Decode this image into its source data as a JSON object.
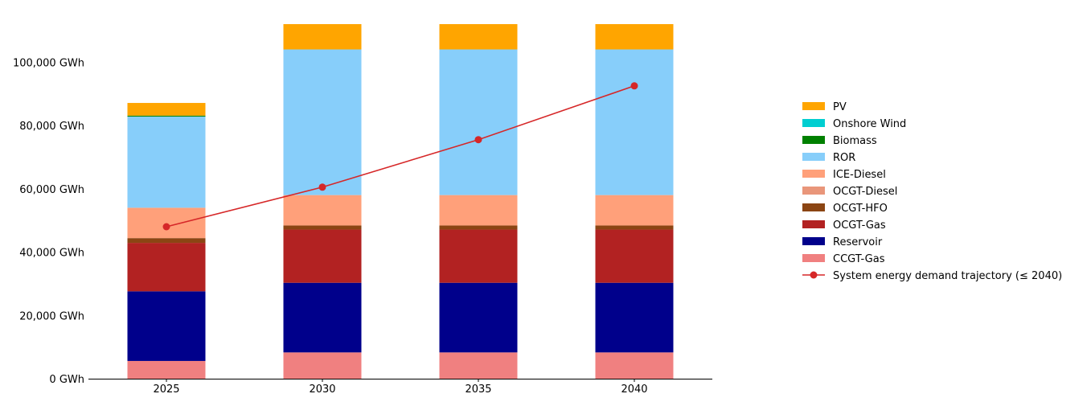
{
  "chart_data": {
    "type": "bar",
    "stacked": true,
    "categories": [
      "2025",
      "2030",
      "2035",
      "2040"
    ],
    "ylim": [
      0,
      112000
    ],
    "yticks": [
      0,
      20000,
      40000,
      60000,
      80000,
      100000
    ],
    "ytick_labels": [
      "0 GWh",
      "20,000 GWh",
      "40,000 GWh",
      "60,000 GWh",
      "80,000 GWh",
      "100,000 GWh"
    ],
    "grid": false,
    "legend_position": "right",
    "series": [
      {
        "name": "CCGT-Gas",
        "color": "#f08080",
        "values": [
          5600,
          8300,
          8300,
          8300
        ]
      },
      {
        "name": "Reservoir",
        "color": "#00008b",
        "values": [
          22000,
          22000,
          22000,
          22000
        ]
      },
      {
        "name": "OCGT-Gas",
        "color": "#b22222",
        "values": [
          15300,
          16800,
          16800,
          16800
        ]
      },
      {
        "name": "OCGT-HFO",
        "color": "#8b4513",
        "values": [
          1500,
          1300,
          1300,
          1300
        ]
      },
      {
        "name": "OCGT-Diesel",
        "color": "#e9967a",
        "values": [
          0,
          0,
          0,
          0
        ]
      },
      {
        "name": "ICE-Diesel",
        "color": "#ffa07a",
        "values": [
          9600,
          9600,
          9600,
          9600
        ]
      },
      {
        "name": "ROR",
        "color": "#87cefa",
        "values": [
          28800,
          46000,
          46000,
          46000
        ]
      },
      {
        "name": "Biomass",
        "color": "#008000",
        "values": [
          300,
          0,
          0,
          0
        ]
      },
      {
        "name": "Onshore Wind",
        "color": "#00ced1",
        "values": [
          0,
          0,
          0,
          0
        ]
      },
      {
        "name": "PV",
        "color": "#ffa500",
        "values": [
          4000,
          8000,
          8000,
          8000
        ]
      }
    ],
    "line": {
      "name": "System energy demand trajectory (≤ 2040)",
      "color": "#d62728",
      "values": [
        48000,
        60500,
        75500,
        92500
      ]
    },
    "legend_order": [
      "PV",
      "Onshore Wind",
      "Biomass",
      "ROR",
      "ICE-Diesel",
      "OCGT-Diesel",
      "OCGT-HFO",
      "OCGT-Gas",
      "Reservoir",
      "CCGT-Gas",
      "System energy demand trajectory (≤ 2040)"
    ]
  }
}
